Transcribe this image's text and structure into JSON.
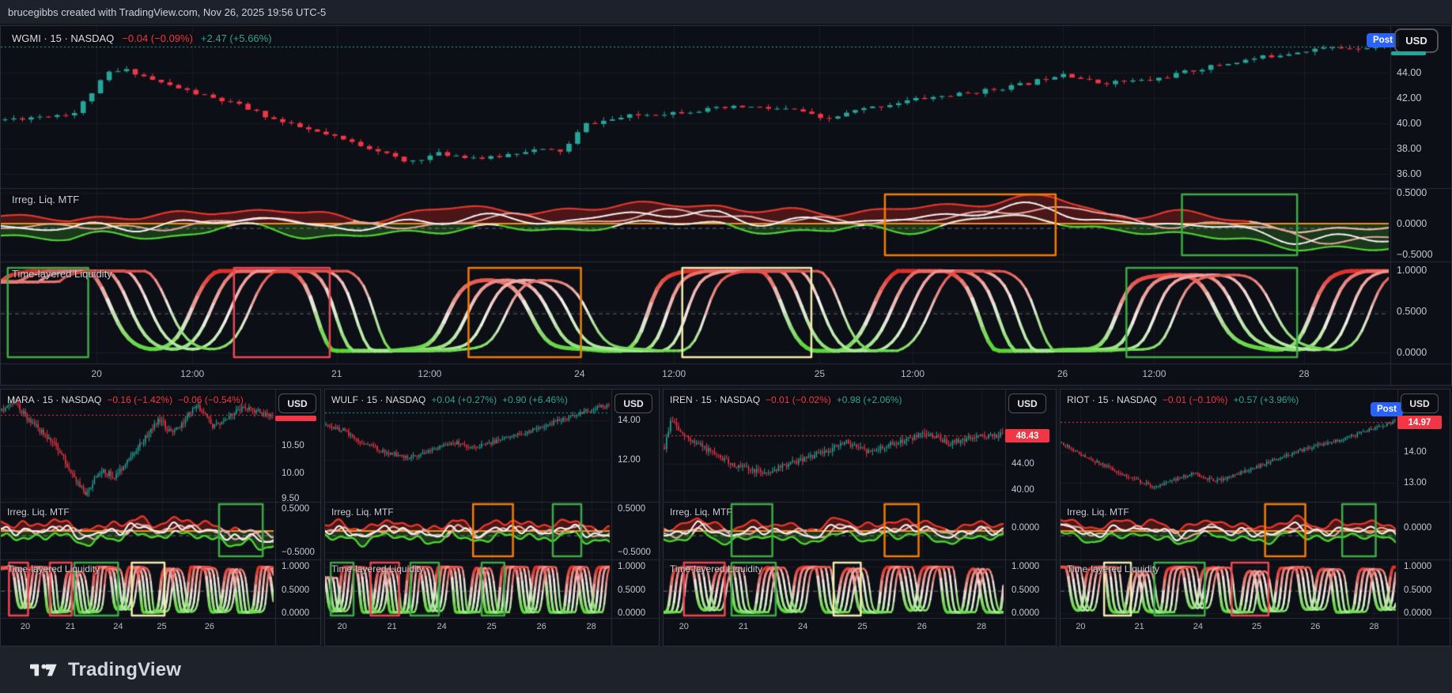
{
  "top_bar": {
    "attribution": "brucegibbs created with TradingView.com, Nov 26, 2025 19:56 UTC-5"
  },
  "footer": {
    "brand": "TradingView"
  },
  "badges": {
    "post": "Post",
    "currency": "USD"
  },
  "indicators": {
    "irreg": "Irreg. Liq. MTF",
    "liq": "Time-layered Liquidity"
  },
  "colors": {
    "up": "#26a69a",
    "down": "#f23645",
    "accent_blue": "#2962ff",
    "zero_line": "#ef8f1f",
    "box_green": "#3dab44",
    "box_red": "#ef4550",
    "box_orange": "#f57c00",
    "box_yellow": "#f3eeb0"
  },
  "main_chart": {
    "title": "WGMI · 15 · NASDAQ",
    "change_session": "−0.04 (−0.09%)",
    "change_day": "+2.47 (+5.66%)",
    "price_axis": [
      "44.00",
      "42.00",
      "40.00",
      "38.00",
      "36.00"
    ],
    "irreg_axis": [
      "0.5000",
      "0.0000",
      "−0.5000"
    ],
    "liq_axis": [
      "1.0000",
      "0.5000",
      "0.0000"
    ],
    "time_axis": [
      "20",
      "12:00",
      "21",
      "12:00",
      "24",
      "12:00",
      "25",
      "12:00",
      "26",
      "12:00",
      "28"
    ],
    "chart_data": {
      "type": "candlestick",
      "last_price": 46.06,
      "candles": 160,
      "volatility": 0.32,
      "seed": 11,
      "price_anchors": [
        [
          0,
          40.3
        ],
        [
          0.05,
          40.8
        ],
        [
          0.075,
          44.0
        ],
        [
          0.09,
          44.2
        ],
        [
          0.11,
          43.3
        ],
        [
          0.14,
          42.3
        ],
        [
          0.17,
          41.4
        ],
        [
          0.2,
          40.1
        ],
        [
          0.235,
          39.0
        ],
        [
          0.27,
          37.9
        ],
        [
          0.29,
          36.9
        ],
        [
          0.315,
          37.6
        ],
        [
          0.35,
          37.2
        ],
        [
          0.38,
          37.9
        ],
        [
          0.405,
          37.8
        ],
        [
          0.42,
          39.9
        ],
        [
          0.455,
          40.6
        ],
        [
          0.5,
          41.0
        ],
        [
          0.535,
          41.3
        ],
        [
          0.577,
          41.0
        ],
        [
          0.593,
          40.2
        ],
        [
          0.617,
          41.0
        ],
        [
          0.66,
          41.9
        ],
        [
          0.7,
          42.4
        ],
        [
          0.74,
          43.1
        ],
        [
          0.767,
          44.0
        ],
        [
          0.79,
          43.2
        ],
        [
          0.83,
          43.4
        ],
        [
          0.87,
          44.4
        ],
        [
          0.91,
          45.2
        ],
        [
          0.95,
          45.9
        ],
        [
          1,
          46.06
        ]
      ],
      "irreg_mid": [
        [
          0,
          0.02
        ],
        [
          0.05,
          -0.12
        ],
        [
          0.1,
          -0.05
        ],
        [
          0.16,
          0.1
        ],
        [
          0.22,
          -0.05
        ],
        [
          0.3,
          0.02
        ],
        [
          0.38,
          0.08
        ],
        [
          0.46,
          0.12
        ],
        [
          0.52,
          0.16
        ],
        [
          0.56,
          0.05
        ],
        [
          0.6,
          -0.02
        ],
        [
          0.65,
          0.1
        ],
        [
          0.7,
          0.2
        ],
        [
          0.76,
          0.22
        ],
        [
          0.8,
          0.05
        ],
        [
          0.84,
          0.0
        ],
        [
          0.88,
          -0.1
        ],
        [
          0.93,
          -0.2
        ],
        [
          1,
          -0.28
        ]
      ],
      "liq_freq": 6.2,
      "liq_phase": 0.08,
      "irreg_boxes": [
        {
          "x0": 0.637,
          "x1": 0.76,
          "c": "orange"
        },
        {
          "x0": 0.851,
          "x1": 0.934,
          "c": "green"
        }
      ],
      "liq_boxes": [
        {
          "x0": 0.005,
          "x1": 0.063,
          "c": "green"
        },
        {
          "x0": 0.168,
          "x1": 0.237,
          "c": "red"
        },
        {
          "x0": 0.337,
          "x1": 0.418,
          "c": "orange"
        },
        {
          "x0": 0.491,
          "x1": 0.584,
          "c": "yellow"
        },
        {
          "x0": 0.811,
          "x1": 0.934,
          "c": "green"
        }
      ]
    }
  },
  "mini_charts": [
    {
      "title": "MARA · 15 · NASDAQ",
      "change_session": "−0.16 (−1.42%)",
      "change_day": "−0.06 (−0.54%)",
      "price_axis": [
        "10.50",
        "10.00",
        "9.50"
      ],
      "irreg_axis": [
        "0.5000",
        "−0.5000"
      ],
      "liq_axis": [
        "1.0000",
        "0.5000",
        "0.0000"
      ],
      "time_axis": [
        "20",
        "21",
        "24",
        "25",
        "26"
      ],
      "chart_data": {
        "type": "candlestick",
        "last_price": 11.06,
        "candles": 150,
        "volatility": 0.1,
        "seed": 3,
        "price_anchors": [
          [
            0,
            11.15
          ],
          [
            0.05,
            11.3
          ],
          [
            0.1,
            10.95
          ],
          [
            0.16,
            10.7
          ],
          [
            0.22,
            10.35
          ],
          [
            0.27,
            9.9
          ],
          [
            0.31,
            9.62
          ],
          [
            0.36,
            10.05
          ],
          [
            0.42,
            9.95
          ],
          [
            0.48,
            10.3
          ],
          [
            0.54,
            10.7
          ],
          [
            0.58,
            11.0
          ],
          [
            0.62,
            10.75
          ],
          [
            0.67,
            10.9
          ],
          [
            0.72,
            11.25
          ],
          [
            0.78,
            10.85
          ],
          [
            0.84,
            11.05
          ],
          [
            0.9,
            11.2
          ],
          [
            0.95,
            11.1
          ],
          [
            1,
            11.06
          ]
        ],
        "irreg_mid": [
          [
            0,
            0.08
          ],
          [
            0.1,
            -0.05
          ],
          [
            0.2,
            0.1
          ],
          [
            0.3,
            -0.12
          ],
          [
            0.38,
            -0.05
          ],
          [
            0.48,
            0.1
          ],
          [
            0.58,
            0.02
          ],
          [
            0.68,
            0.12
          ],
          [
            0.78,
            -0.05
          ],
          [
            0.88,
            -0.15
          ],
          [
            1,
            -0.2
          ]
        ],
        "liq_freq": 8.5,
        "liq_phase": 0.1,
        "irreg_boxes": [
          {
            "x0": 0.8,
            "x1": 0.96,
            "c": "green"
          }
        ],
        "liq_boxes": [
          {
            "x0": 0.03,
            "x1": 0.1,
            "c": "red"
          },
          {
            "x0": 0.18,
            "x1": 0.26,
            "c": "red"
          },
          {
            "x0": 0.27,
            "x1": 0.43,
            "c": "green"
          },
          {
            "x0": 0.48,
            "x1": 0.6,
            "c": "yellow"
          }
        ]
      }
    },
    {
      "title": "WULF · 15 · NASDAQ",
      "change_session": "+0.04 (+0.27%)",
      "change_day": "+0.90 (+6.46%)",
      "price_axis": [
        "14.00",
        "12.00"
      ],
      "irreg_axis": [
        "0.5000",
        "−0.5000"
      ],
      "liq_axis": [
        "1.0000",
        "0.5000",
        "0.0000"
      ],
      "time_axis": [
        "20",
        "21",
        "24",
        "25",
        "26",
        "28"
      ],
      "chart_data": {
        "type": "candlestick",
        "last_price": 14.83,
        "candles": 150,
        "volatility": 0.2,
        "seed": 5,
        "price_anchors": [
          [
            0,
            13.75
          ],
          [
            0.06,
            13.5
          ],
          [
            0.12,
            12.9
          ],
          [
            0.2,
            12.45
          ],
          [
            0.28,
            12.15
          ],
          [
            0.34,
            12.3
          ],
          [
            0.4,
            12.7
          ],
          [
            0.46,
            12.9
          ],
          [
            0.52,
            12.6
          ],
          [
            0.58,
            12.85
          ],
          [
            0.64,
            13.15
          ],
          [
            0.7,
            13.35
          ],
          [
            0.76,
            13.7
          ],
          [
            0.82,
            14.0
          ],
          [
            0.88,
            14.25
          ],
          [
            0.94,
            14.55
          ],
          [
            1,
            14.8
          ]
        ],
        "irreg_mid": [
          [
            0,
            0.05
          ],
          [
            0.12,
            -0.1
          ],
          [
            0.25,
            0.08
          ],
          [
            0.35,
            -0.12
          ],
          [
            0.45,
            0.05
          ],
          [
            0.55,
            -0.08
          ],
          [
            0.65,
            0.1
          ],
          [
            0.75,
            -0.05
          ],
          [
            0.85,
            0.08
          ],
          [
            1,
            -0.15
          ]
        ],
        "liq_freq": 9.0,
        "liq_phase": 0.45,
        "irreg_boxes": [
          {
            "x0": 0.52,
            "x1": 0.66,
            "c": "orange"
          },
          {
            "x0": 0.8,
            "x1": 0.9,
            "c": "green"
          }
        ],
        "liq_boxes": [
          {
            "x0": 0.02,
            "x1": 0.1,
            "c": "green"
          },
          {
            "x0": 0.16,
            "x1": 0.26,
            "c": "red"
          },
          {
            "x0": 0.3,
            "x1": 0.4,
            "c": "green"
          },
          {
            "x0": 0.55,
            "x1": 0.63,
            "c": "green"
          }
        ]
      }
    },
    {
      "title": "IREN · 15 · NASDAQ",
      "change_session": "−0.01 (−0.02%)",
      "change_day": "+0.98 (+2.06%)",
      "price_tag": "48.43",
      "price_axis": [
        "44.00",
        "40.00"
      ],
      "irreg_axis": [
        "0.0000"
      ],
      "liq_axis": [
        "1.0000",
        "0.5000",
        "0.0000"
      ],
      "time_axis": [
        "20",
        "21",
        "24",
        "25",
        "26",
        "28"
      ],
      "chart_data": {
        "type": "candlestick",
        "last_price": 48.43,
        "candles": 170,
        "volatility": 0.8,
        "seed": 9,
        "price_anchors": [
          [
            0,
            46.5
          ],
          [
            0.02,
            51.0
          ],
          [
            0.05,
            48.5
          ],
          [
            0.1,
            47.0
          ],
          [
            0.16,
            45.0
          ],
          [
            0.22,
            43.5
          ],
          [
            0.3,
            42.6
          ],
          [
            0.36,
            43.8
          ],
          [
            0.42,
            44.8
          ],
          [
            0.48,
            46.0
          ],
          [
            0.54,
            47.3
          ],
          [
            0.6,
            45.8
          ],
          [
            0.66,
            46.8
          ],
          [
            0.72,
            47.8
          ],
          [
            0.78,
            48.6
          ],
          [
            0.84,
            47.2
          ],
          [
            0.9,
            47.9
          ],
          [
            0.96,
            48.3
          ],
          [
            1,
            48.43
          ]
        ],
        "irreg_mid": [
          [
            0,
            -0.1
          ],
          [
            0.1,
            0.1
          ],
          [
            0.2,
            -0.1
          ],
          [
            0.3,
            0.05
          ],
          [
            0.42,
            -0.12
          ],
          [
            0.52,
            0.1
          ],
          [
            0.62,
            -0.05
          ],
          [
            0.72,
            0.12
          ],
          [
            0.82,
            -0.1
          ],
          [
            1,
            0.05
          ]
        ],
        "liq_freq": 8.2,
        "liq_phase": 0.8,
        "irreg_boxes": [
          {
            "x0": 0.2,
            "x1": 0.32,
            "c": "green"
          },
          {
            "x0": 0.65,
            "x1": 0.75,
            "c": "orange"
          }
        ],
        "liq_boxes": [
          {
            "x0": 0.06,
            "x1": 0.18,
            "c": "red"
          },
          {
            "x0": 0.2,
            "x1": 0.33,
            "c": "green"
          },
          {
            "x0": 0.5,
            "x1": 0.58,
            "c": "yellow"
          }
        ]
      }
    },
    {
      "title": "RIOT · 15 · NASDAQ",
      "change_session": "−0.01 (−0.10%)",
      "change_day": "+0.57 (+3.96%)",
      "price_tag": "14.97",
      "price_axis": [
        "14.00",
        "13.00"
      ],
      "irreg_axis": [
        "0.0000"
      ],
      "liq_axis": [
        "1.0000",
        "0.5000",
        "0.0000"
      ],
      "time_axis": [
        "20",
        "21",
        "24",
        "25",
        "26",
        "28"
      ],
      "chart_data": {
        "type": "candlestick",
        "last_price": 14.97,
        "candles": 170,
        "volatility": 0.1,
        "seed": 13,
        "price_anchors": [
          [
            0,
            14.3
          ],
          [
            0.06,
            13.9
          ],
          [
            0.12,
            13.6
          ],
          [
            0.2,
            13.2
          ],
          [
            0.28,
            12.85
          ],
          [
            0.34,
            13.1
          ],
          [
            0.4,
            13.3
          ],
          [
            0.46,
            13.05
          ],
          [
            0.52,
            13.25
          ],
          [
            0.58,
            13.5
          ],
          [
            0.64,
            13.75
          ],
          [
            0.7,
            14.0
          ],
          [
            0.76,
            14.2
          ],
          [
            0.82,
            14.35
          ],
          [
            0.88,
            14.55
          ],
          [
            0.94,
            14.8
          ],
          [
            1,
            14.97
          ]
        ],
        "irreg_mid": [
          [
            0,
            0.1
          ],
          [
            0.1,
            -0.08
          ],
          [
            0.22,
            0.1
          ],
          [
            0.34,
            -0.1
          ],
          [
            0.46,
            0.08
          ],
          [
            0.58,
            -0.1
          ],
          [
            0.7,
            0.1
          ],
          [
            0.8,
            -0.05
          ],
          [
            0.9,
            0.08
          ],
          [
            1,
            -0.1
          ]
        ],
        "liq_freq": 8.8,
        "liq_phase": 0.3,
        "irreg_boxes": [
          {
            "x0": 0.61,
            "x1": 0.73,
            "c": "orange"
          },
          {
            "x0": 0.84,
            "x1": 0.94,
            "c": "green"
          }
        ],
        "liq_boxes": [
          {
            "x0": 0.13,
            "x1": 0.21,
            "c": "yellow"
          },
          {
            "x0": 0.28,
            "x1": 0.43,
            "c": "green"
          },
          {
            "x0": 0.51,
            "x1": 0.62,
            "c": "red"
          }
        ]
      }
    }
  ]
}
